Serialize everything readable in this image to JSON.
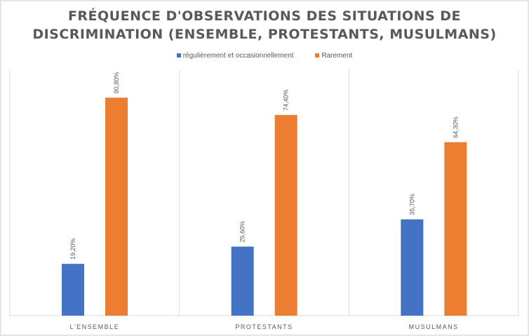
{
  "chart_data": {
    "type": "bar",
    "title_line1": "FRÉQUENCE D'OBSERVATIONS DES SITUATIONS DE",
    "title_line2": "DISCRIMINATION (ENSEMBLE, PROTESTANTS, MUSULMANS)",
    "categories": [
      "L'ENSEMBLE",
      "PROTESTANTS",
      "MUSULMANS"
    ],
    "series": [
      {
        "name": "régulièrement et occasionnellement",
        "color": "#4472c4",
        "values": [
          19.2,
          25.6,
          35.7
        ],
        "labels": [
          "19,20%",
          "25,60%",
          "35,70%"
        ]
      },
      {
        "name": "Rarement",
        "color": "#ed7d31",
        "values": [
          80.8,
          74.4,
          64.3
        ],
        "labels": [
          "80,80%",
          "74,40%",
          "64,30%"
        ]
      }
    ],
    "ylim": [
      0,
      91
    ],
    "legend_position": "top",
    "grid": "vertical category separators"
  }
}
